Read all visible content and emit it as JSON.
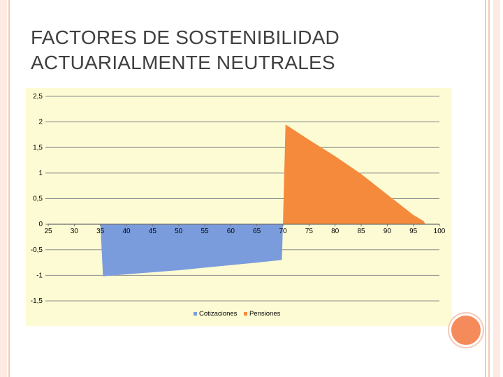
{
  "slide": {
    "title_line1": "FACTORES DE SOSTENIBILIDAD",
    "title_line2": "ACTUARIALMENTE NEUTRALES"
  },
  "colors": {
    "cotizaciones": "#7b9cdc",
    "pensiones": "#f58a3c",
    "chart_bg": "#fdfbd3"
  },
  "chart_data": {
    "type": "area",
    "xlabel": "",
    "ylabel": "",
    "xlim": [
      25,
      100
    ],
    "ylim": [
      -1.5,
      2.5
    ],
    "x_ticks": [
      "25",
      "30",
      "35",
      "40",
      "45",
      "50",
      "55",
      "60",
      "65",
      "70",
      "75",
      "80",
      "85",
      "90",
      "95",
      "100"
    ],
    "y_ticks": [
      "2,5",
      "2",
      "1,5",
      "1",
      "0,5",
      "0",
      "-0,5",
      "-1",
      "-1,5"
    ],
    "grid": true,
    "legend": "bottom",
    "series": [
      {
        "name": "Cotizaciones",
        "points": [
          [
            35,
            0
          ],
          [
            35.5,
            -1.02
          ],
          [
            40,
            -0.98
          ],
          [
            45,
            -0.94
          ],
          [
            50,
            -0.9
          ],
          [
            55,
            -0.85
          ],
          [
            60,
            -0.8
          ],
          [
            65,
            -0.75
          ],
          [
            69.8,
            -0.7
          ],
          [
            70,
            0
          ]
        ]
      },
      {
        "name": "Pensiones",
        "points": [
          [
            70,
            0
          ],
          [
            70.5,
            1.95
          ],
          [
            75,
            1.65
          ],
          [
            80,
            1.33
          ],
          [
            85,
            0.98
          ],
          [
            90,
            0.58
          ],
          [
            95,
            0.18
          ],
          [
            97,
            0.06
          ],
          [
            97.3,
            0
          ]
        ]
      }
    ]
  }
}
